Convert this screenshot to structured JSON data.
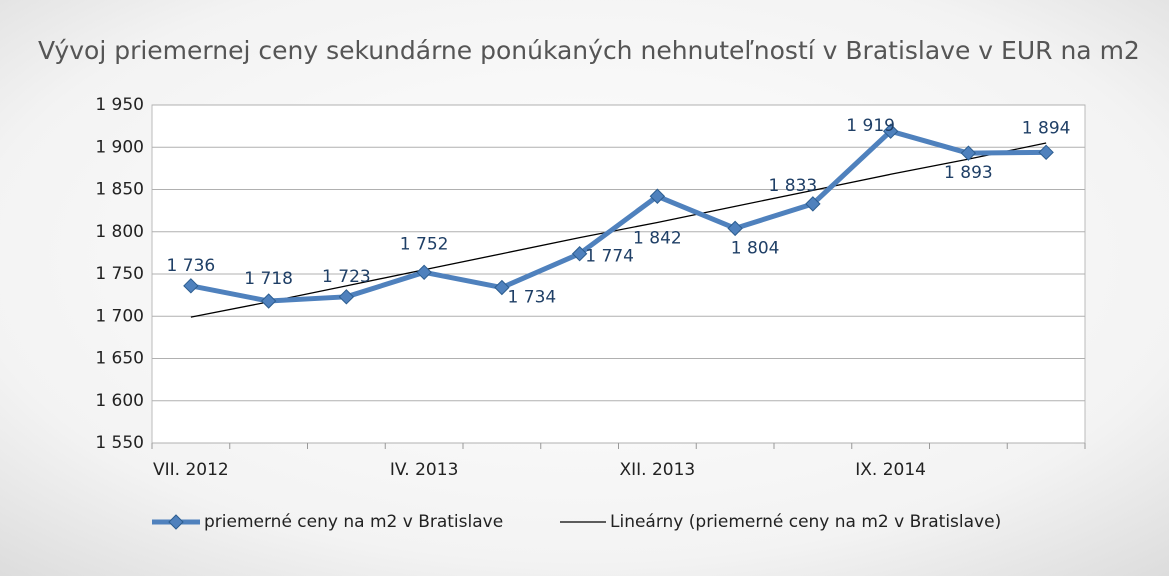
{
  "chart_data": {
    "type": "line",
    "title": "Vývoj priemernej ceny sekundárne ponúkaných nehnuteľností v Bratislave v EUR na m2",
    "categories": [
      "VII. 2012",
      null,
      null,
      "IV. 2013",
      null,
      null,
      "XII. 2013",
      null,
      null,
      "IX. 2014",
      null,
      null
    ],
    "series": [
      {
        "name": "priemerné ceny na m2 v Bratislave",
        "color": "#4f81bd",
        "values": [
          1736,
          1718,
          1723,
          1752,
          1734,
          1774,
          1842,
          1804,
          1833,
          1919,
          1893,
          1894
        ],
        "value_labels": [
          "1 736",
          "1 718",
          "1 723",
          "1 752",
          "1 734",
          "1 774",
          "1 842",
          "1 804",
          "1 833",
          "1 919",
          "1 893",
          "1 894"
        ]
      },
      {
        "name": "Lineárny (priemerné ceny na m2 v Bratislave)",
        "color": "#000000",
        "values": [
          1699,
          1717,
          1736,
          1755,
          1774,
          1793,
          1811,
          1830,
          1849,
          1868,
          1886,
          1905
        ]
      }
    ],
    "ylim": [
      1550,
      1950
    ],
    "yticks": [
      {
        "value": 1550,
        "label": "1 550"
      },
      {
        "value": 1600,
        "label": "1 600"
      },
      {
        "value": 1650,
        "label": "1 650"
      },
      {
        "value": 1700,
        "label": "1 700"
      },
      {
        "value": 1750,
        "label": "1 750"
      },
      {
        "value": 1800,
        "label": "1 800"
      },
      {
        "value": 1850,
        "label": "1 850"
      },
      {
        "value": 1900,
        "label": "1 900"
      },
      {
        "value": 1950,
        "label": "1 950"
      }
    ],
    "grid": true
  }
}
